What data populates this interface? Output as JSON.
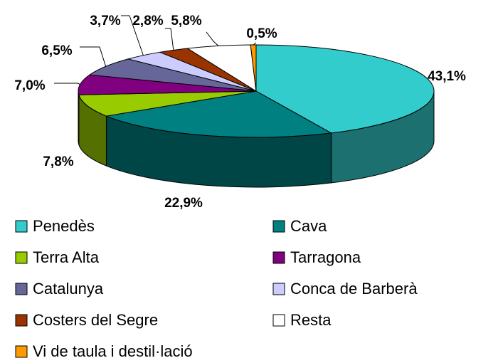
{
  "chart_data": {
    "type": "pie",
    "categories": [
      "Penedès",
      "Cava",
      "Terra Alta",
      "Tarragona",
      "Catalunya",
      "Conca de Barberà",
      "Costers del Segre",
      "Resta",
      "Vi de taula i destil·lació"
    ],
    "values": [
      43.1,
      22.9,
      7.8,
      7.0,
      6.5,
      3.7,
      2.8,
      5.8,
      0.5
    ],
    "value_labels": [
      "43,1%",
      "22,9%",
      "7,8%",
      "7,0%",
      "6,5%",
      "3,7%",
      "2,8%",
      "5,8%",
      "0,5%"
    ],
    "colors": [
      "#33cccc",
      "#008080",
      "#99cc00",
      "#800080",
      "#666699",
      "#ccccff",
      "#993300",
      "#ffffff",
      "#ff9900"
    ],
    "legend": "bottom"
  }
}
